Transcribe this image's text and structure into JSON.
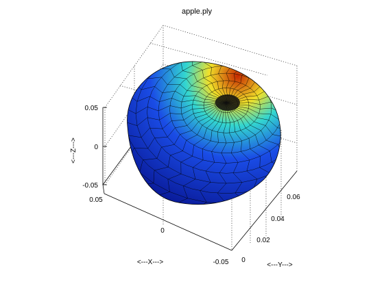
{
  "window": {
    "title": "apple.ply"
  },
  "chart_data": {
    "type": "surface",
    "title": "apple.ply",
    "xlabel": "<---X--->",
    "ylabel": "<---Y--->",
    "zlabel": "<---Z--->",
    "x_ticks": [
      "0.05",
      "0",
      "-0.05"
    ],
    "y_ticks": [
      "0",
      "0.02",
      "0.04",
      "0.06"
    ],
    "z_ticks": [
      "0.05",
      "0",
      "-0.05"
    ],
    "xlim": [
      -0.05,
      0.05
    ],
    "ylim": [
      0,
      0.07
    ],
    "zlim": [
      -0.05,
      0.05
    ],
    "grid": true,
    "colormap": "jet",
    "colors": {
      "high": "#c62a00",
      "upper": "#f0e02a",
      "mid": "#33d6d0",
      "low": "#1a4ce6",
      "lowest": "#0a1c9c"
    }
  }
}
